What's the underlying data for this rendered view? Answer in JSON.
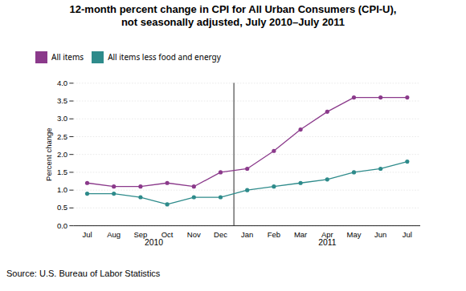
{
  "chart_data": {
    "type": "line",
    "title": "12-month percent change in CPI for All Urban Consumers (CPI-U),\nnot seasonally adjusted, July 2010–July 2011",
    "ylabel": "Percent change",
    "source": "Source: U.S. Bureau of Labor Statistics",
    "categories": [
      "Jul",
      "Aug",
      "Sep",
      "Oct",
      "Nov",
      "Dec",
      "Jan",
      "Feb",
      "Mar",
      "Apr",
      "May",
      "Jun",
      "Jul"
    ],
    "annotations": [
      {
        "text": "2010",
        "from": 0,
        "to": 5
      },
      {
        "text": "2011",
        "from": 6,
        "to": 12
      }
    ],
    "series": [
      {
        "name": "All items",
        "color": "#8B3A8B",
        "marker": "circle",
        "values": [
          1.2,
          1.1,
          1.1,
          1.2,
          1.1,
          1.5,
          1.6,
          2.1,
          2.7,
          3.2,
          3.6,
          3.6,
          3.6
        ]
      },
      {
        "name": "All items less food and energy",
        "color": "#2E8B8B",
        "marker": "circle",
        "values": [
          0.9,
          0.9,
          0.8,
          0.6,
          0.8,
          0.8,
          1.0,
          1.1,
          1.2,
          1.3,
          1.5,
          1.6,
          1.8
        ]
      }
    ],
    "ylim": [
      0.0,
      4.0
    ],
    "yticks": [
      {
        "value": 0,
        "label": "0.0"
      },
      0.5,
      {
        "value": 1,
        "label": "1.0"
      },
      1.5,
      {
        "value": 2,
        "label": "2.0"
      },
      2.5,
      {
        "value": 3,
        "label": "3.0"
      },
      3.5,
      {
        "value": 4,
        "label": "4.0"
      }
    ],
    "grid": true,
    "legend": "upper left"
  }
}
